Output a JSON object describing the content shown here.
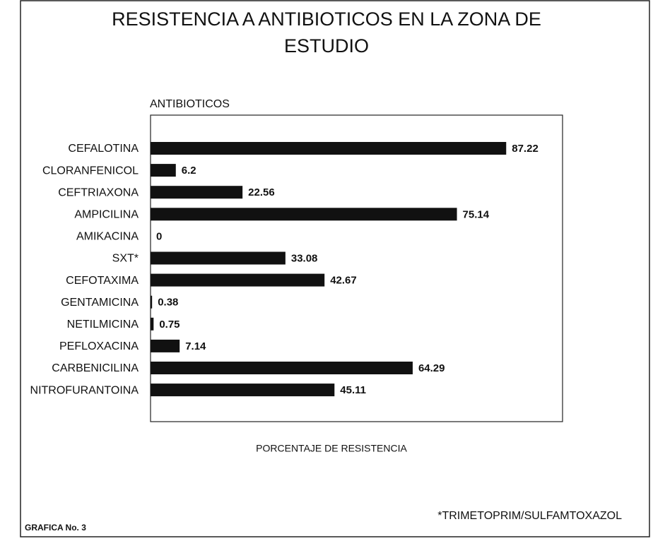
{
  "chart_data": {
    "type": "hbar",
    "title": "RESISTENCIA A ANTIBIOTICOS EN LA ZONA DE ESTUDIO",
    "y_label": "ANTIBIOTICOS",
    "x_label": "PORCENTAJE DE RESISTENCIA",
    "annotation": "*TRIMETOPRIM/SULFAMTOXAZOL",
    "footer": "GRAFICA No. 3",
    "categories": [
      "CEFALOTINA",
      "CLORANFENICOL",
      "CEFTRIAXONA",
      "AMPICILINA",
      "AMIKACINA",
      "SXT*",
      "CEFOTAXIMA",
      "GENTAMICINA",
      "NETILMICINA",
      "PEFLOXACINA",
      "CARBENICILINA",
      "NITROFURANTOINA"
    ],
    "values": [
      87.22,
      6.2,
      22.56,
      75.14,
      0,
      33.08,
      42.67,
      0.38,
      0.75,
      7.14,
      64.29,
      45.11
    ],
    "color": "#111111",
    "xlim": [
      0,
      100
    ]
  }
}
